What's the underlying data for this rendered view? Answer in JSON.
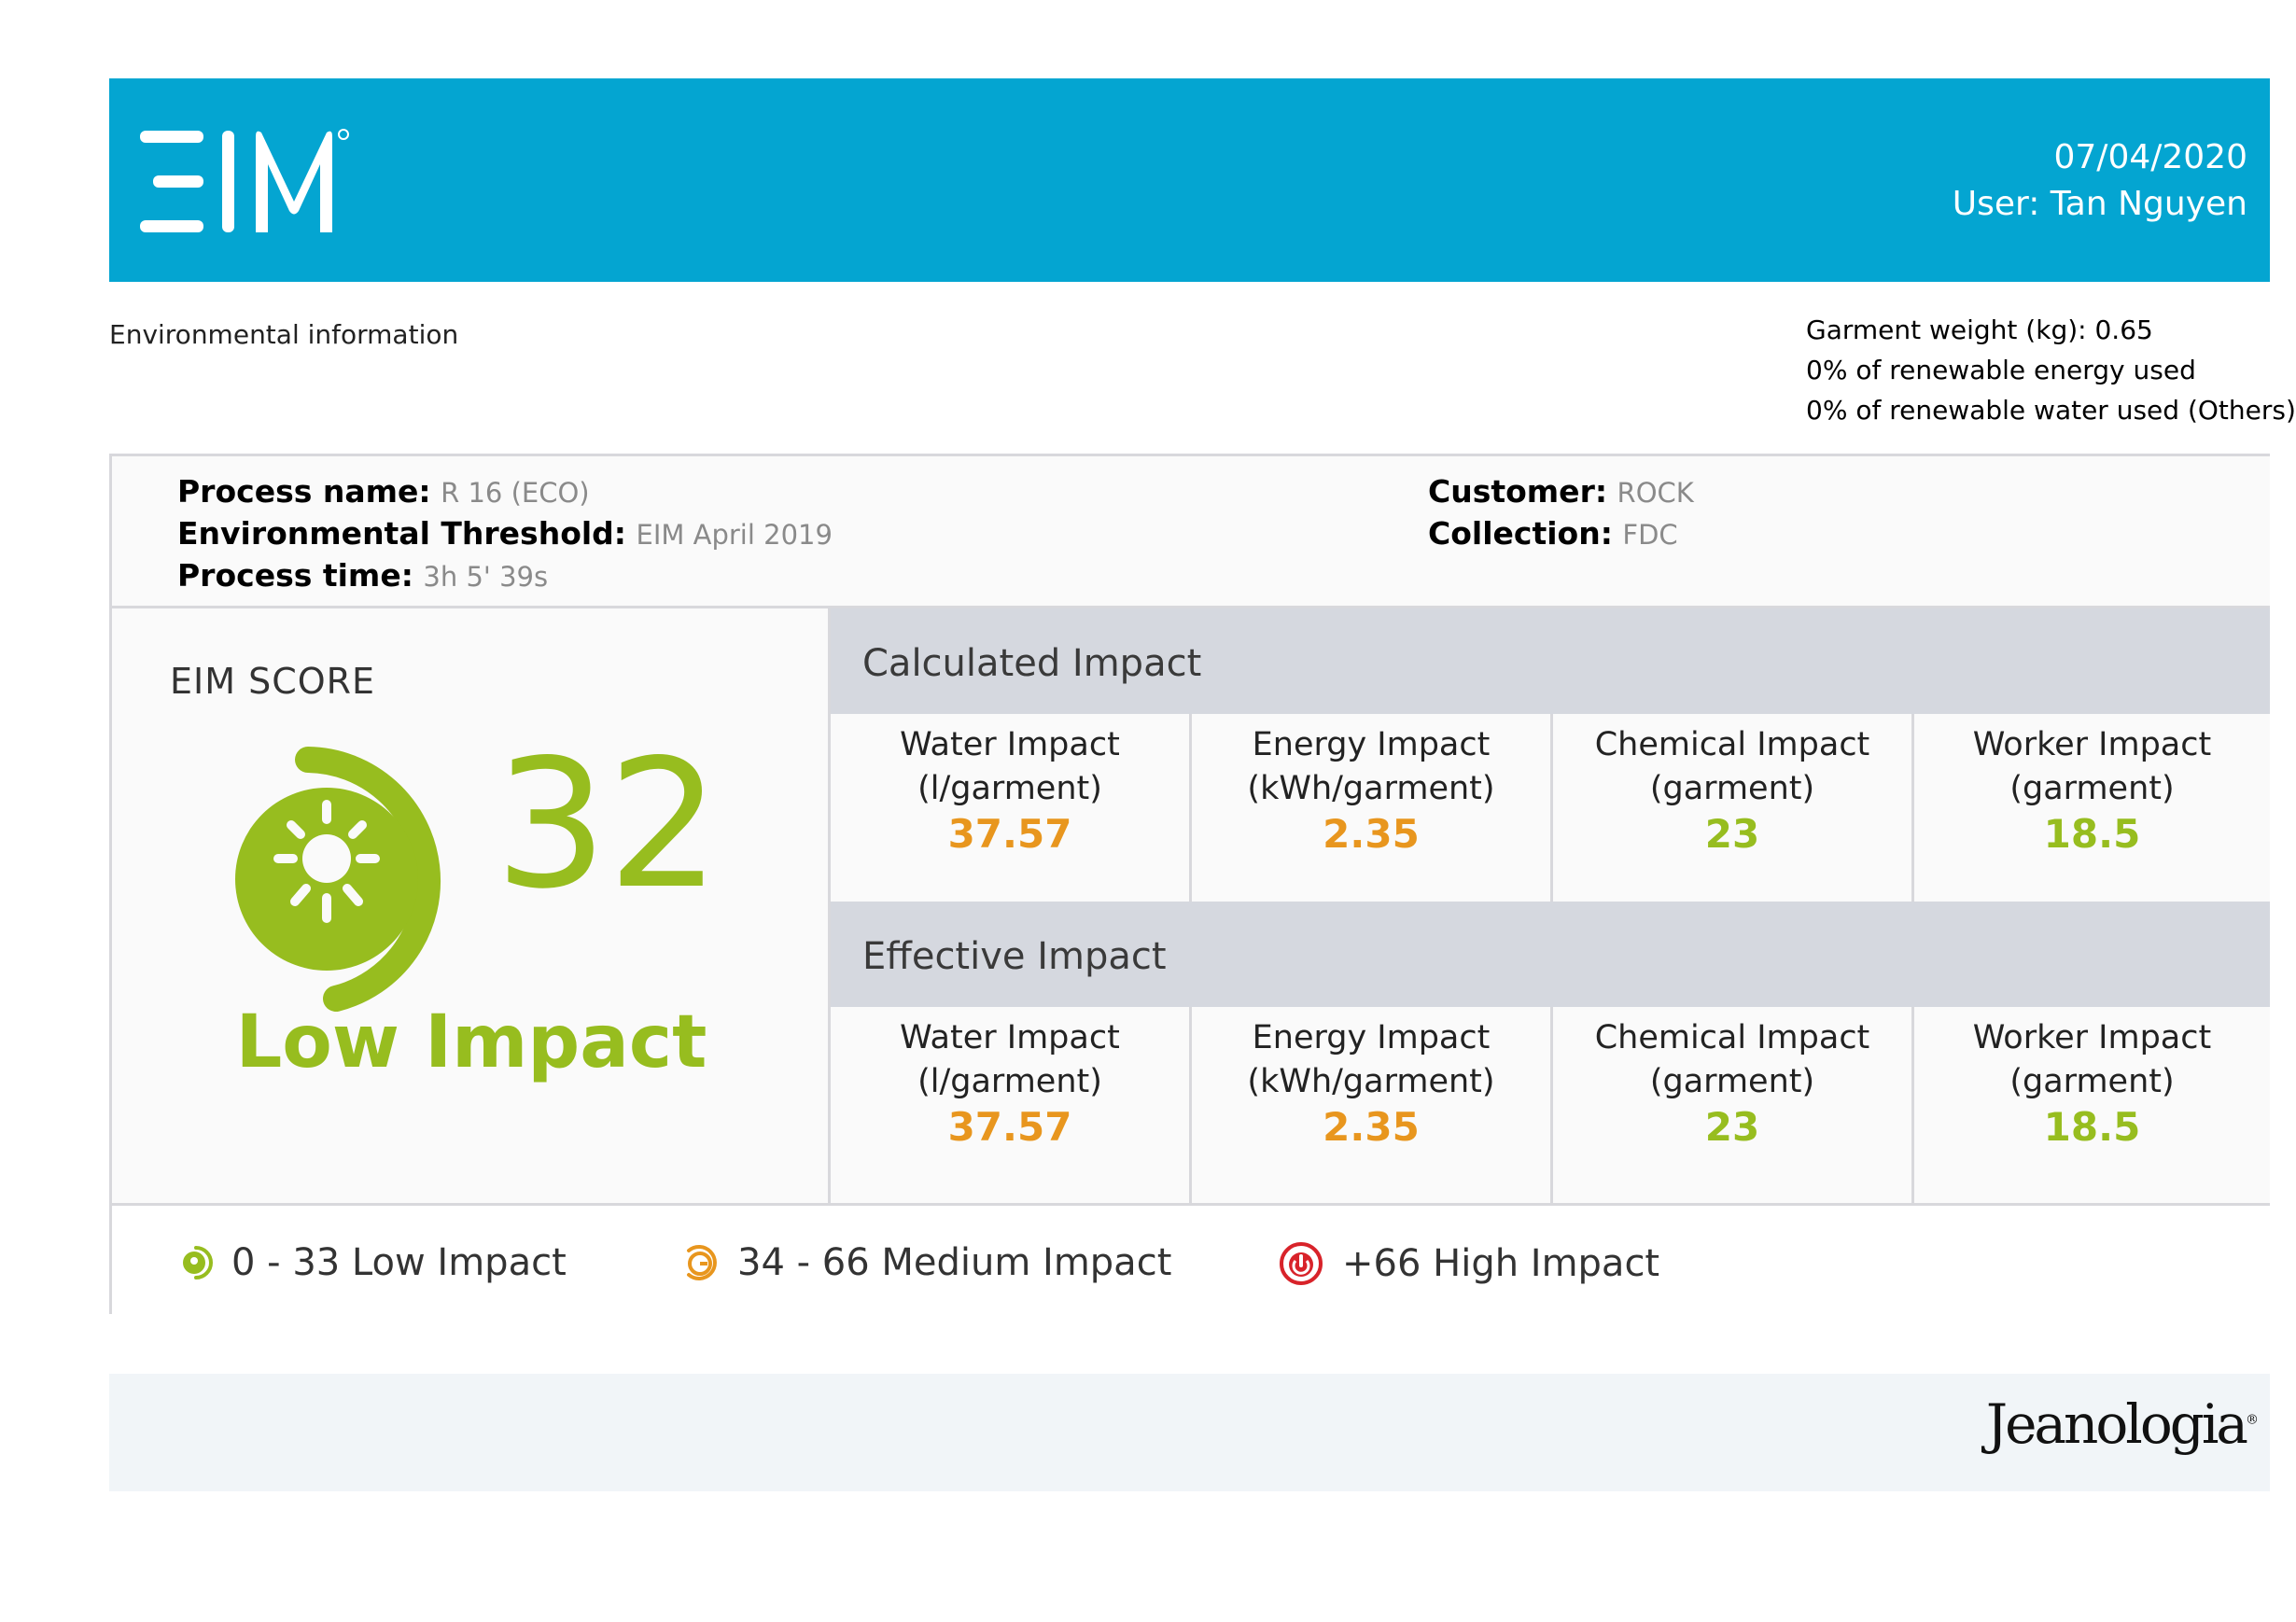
{
  "header": {
    "logo_text": "EIM",
    "date": "07/04/2020",
    "user": "User: Tan Nguyen"
  },
  "env_label": "Environmental information",
  "garment_info": [
    "Garment weight (kg): 0.65",
    "0% of renewable energy used",
    "0% of renewable water used (Others)"
  ],
  "process": {
    "name_label": "Process name:",
    "name_value": "R 16 (ECO)",
    "threshold_label": "Environmental Threshold:",
    "threshold_value": "EIM April 2019",
    "time_label": "Process time:",
    "time_value": "3h 5' 39s",
    "customer_label": "Customer:",
    "customer_value": "ROCK",
    "collection_label": "Collection:",
    "collection_value": "FDC"
  },
  "score": {
    "title": "EIM SCORE",
    "value": "32",
    "label": "Low Impact"
  },
  "calculated": {
    "title": "Calculated Impact",
    "cells": [
      {
        "name": "Water Impact",
        "unit": "(l/garment)",
        "value": "37.57"
      },
      {
        "name": "Energy Impact",
        "unit": "(kWh/garment)",
        "value": "2.35"
      },
      {
        "name": "Chemical Impact",
        "unit": "(garment)",
        "value": "23"
      },
      {
        "name": "Worker Impact",
        "unit": "(garment)",
        "value": "18.5"
      }
    ]
  },
  "effective": {
    "title": "Effective Impact",
    "cells": [
      {
        "name": "Water Impact",
        "unit": "(l/garment)",
        "value": "37.57"
      },
      {
        "name": "Energy Impact",
        "unit": "(kWh/garment)",
        "value": "2.35"
      },
      {
        "name": "Chemical Impact",
        "unit": "(garment)",
        "value": "23"
      },
      {
        "name": "Worker Impact",
        "unit": "(garment)",
        "value": "18.5"
      }
    ]
  },
  "legend": {
    "low": "0 - 33 Low Impact",
    "medium": "34 - 66 Medium Impact",
    "high": "+66 High Impact"
  },
  "footer": {
    "brand": "Jeanologia"
  },
  "colors": {
    "header_bg": "#04a5d1",
    "low": "#97bd1f",
    "medium": "#e8961e",
    "high": "#d8232a"
  }
}
